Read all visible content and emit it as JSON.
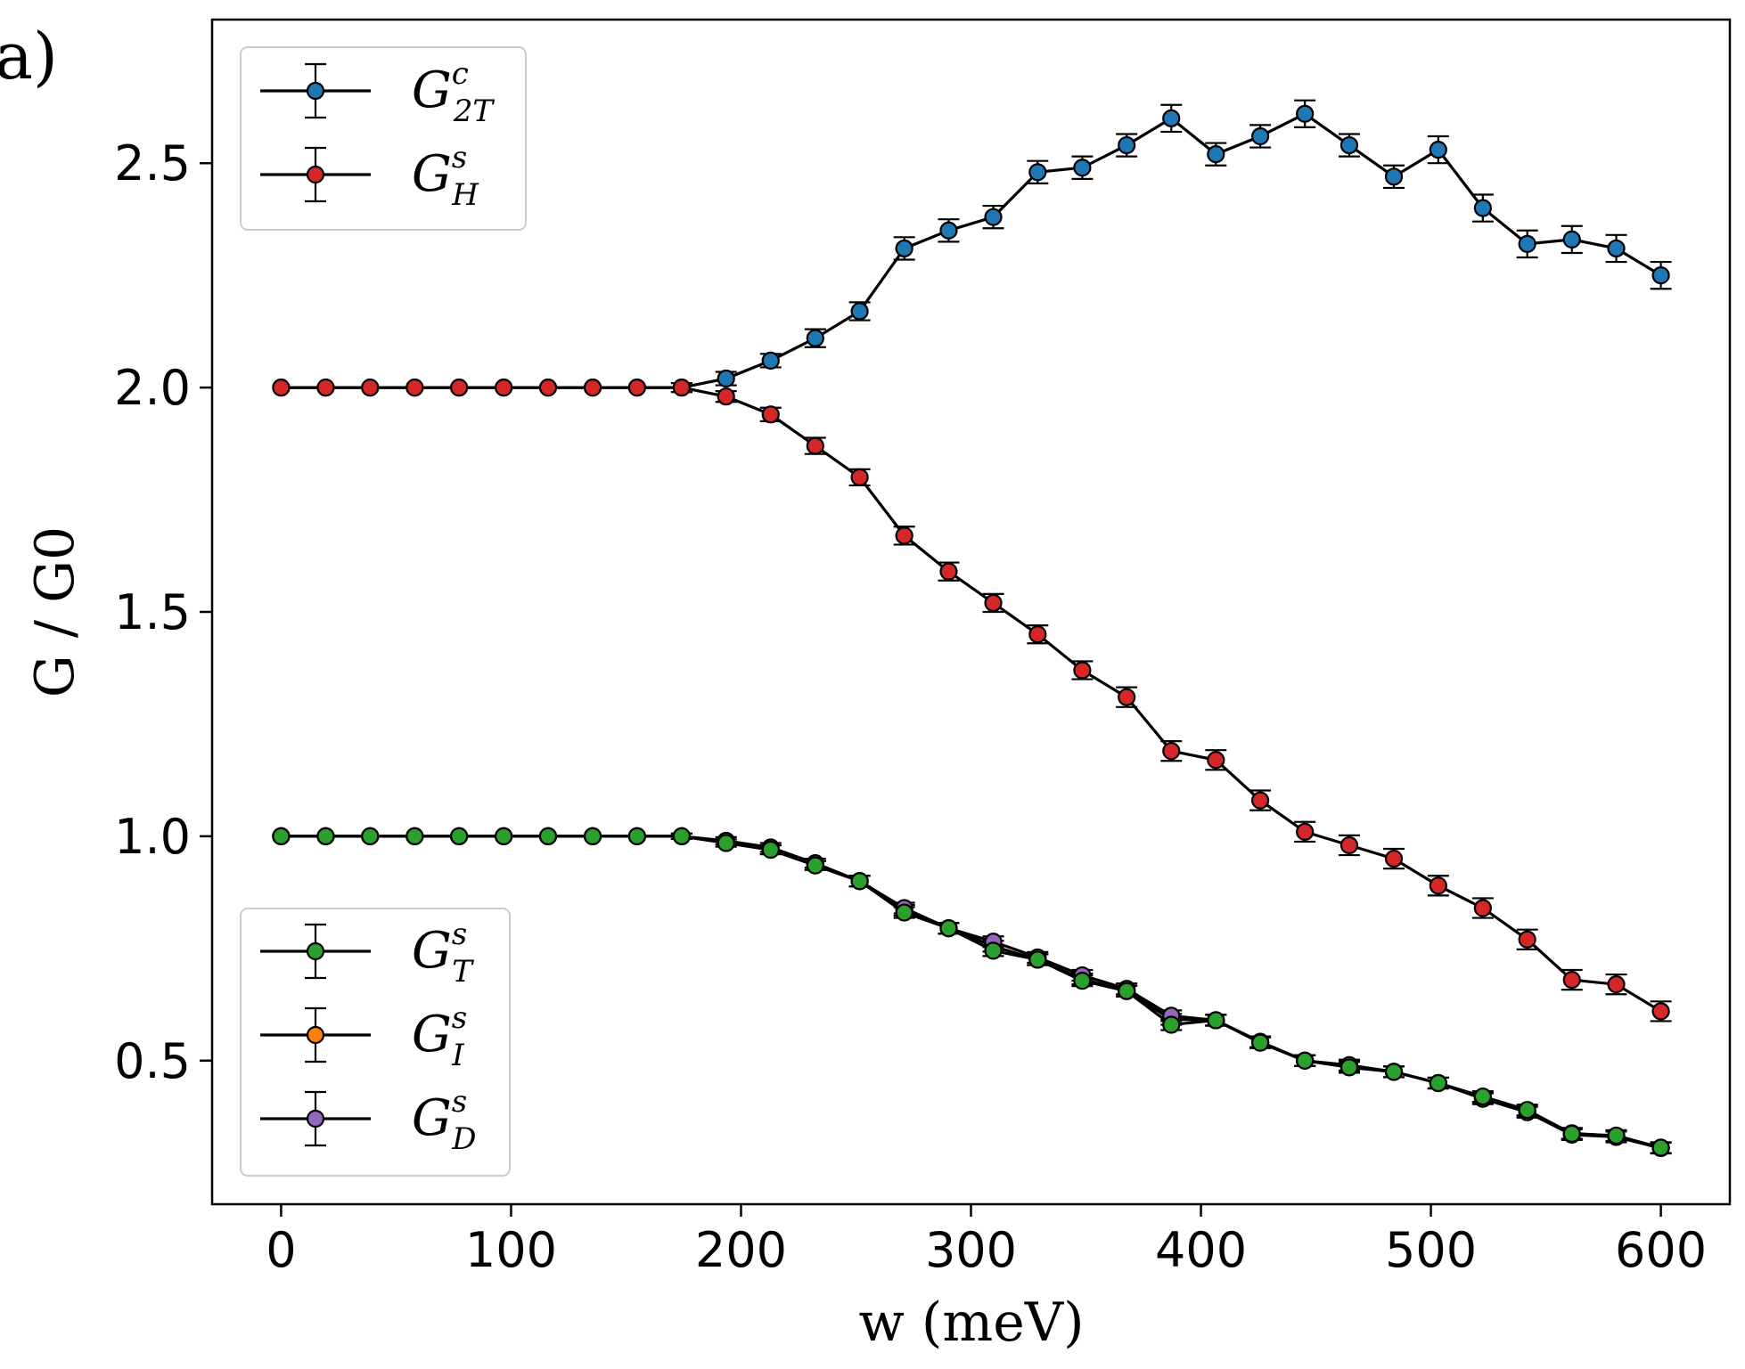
{
  "panel_label": "a)",
  "chart_data": {
    "type": "line",
    "title": "",
    "xlabel": "w (meV)",
    "ylabel": "G / G0",
    "xlim": [
      -30,
      630
    ],
    "ylim": [
      0.18,
      2.82
    ],
    "xticks": [
      0,
      100,
      200,
      300,
      400,
      500,
      600
    ],
    "yticks": [
      0.5,
      1.0,
      1.5,
      2.0,
      2.5
    ],
    "xtick_labels": [
      "0",
      "100",
      "200",
      "300",
      "400",
      "500",
      "600"
    ],
    "ytick_labels": [
      "0.5",
      "1.0",
      "1.5",
      "2.0",
      "2.5"
    ],
    "grid": false,
    "error_bars": true,
    "x": [
      0,
      19.4,
      38.7,
      58.1,
      77.4,
      96.8,
      116.1,
      135.5,
      154.8,
      174.2,
      193.5,
      212.9,
      232.3,
      251.6,
      271.0,
      290.3,
      309.7,
      329.0,
      348.4,
      367.7,
      387.1,
      406.5,
      425.8,
      445.2,
      464.5,
      483.9,
      503.2,
      522.6,
      541.9,
      561.3,
      580.6,
      600.0
    ],
    "series": [
      {
        "name": "G_2T^c",
        "label_main": "G",
        "label_sub": "2T",
        "label_sup": "c",
        "color": "#1f77b4",
        "legend": "upper",
        "values": [
          2.0,
          2.0,
          2.0,
          2.0,
          2.0,
          2.0,
          2.0,
          2.0,
          2.0,
          2.0,
          2.02,
          2.06,
          2.11,
          2.17,
          2.31,
          2.35,
          2.38,
          2.48,
          2.49,
          2.54,
          2.6,
          2.52,
          2.56,
          2.61,
          2.54,
          2.47,
          2.53,
          2.4,
          2.32,
          2.33,
          2.31,
          2.25
        ],
        "errors": [
          0,
          0,
          0,
          0,
          0,
          0,
          0,
          0,
          0,
          0.01,
          0.015,
          0.015,
          0.02,
          0.02,
          0.025,
          0.025,
          0.025,
          0.025,
          0.025,
          0.025,
          0.03,
          0.025,
          0.025,
          0.03,
          0.025,
          0.025,
          0.03,
          0.03,
          0.03,
          0.03,
          0.03,
          0.03
        ]
      },
      {
        "name": "G_H^s",
        "label_main": "G",
        "label_sub": "H",
        "label_sup": "s",
        "color": "#d62728",
        "legend": "upper",
        "values": [
          2.0,
          2.0,
          2.0,
          2.0,
          2.0,
          2.0,
          2.0,
          2.0,
          2.0,
          2.0,
          1.98,
          1.94,
          1.87,
          1.8,
          1.67,
          1.59,
          1.52,
          1.45,
          1.37,
          1.31,
          1.19,
          1.17,
          1.08,
          1.01,
          0.98,
          0.95,
          0.89,
          0.84,
          0.77,
          0.68,
          0.67,
          0.61
        ],
        "errors": [
          0,
          0,
          0,
          0,
          0,
          0,
          0,
          0,
          0,
          0.01,
          0.012,
          0.015,
          0.018,
          0.018,
          0.02,
          0.02,
          0.02,
          0.02,
          0.02,
          0.022,
          0.022,
          0.022,
          0.022,
          0.022,
          0.022,
          0.022,
          0.022,
          0.022,
          0.022,
          0.022,
          0.022,
          0.022
        ]
      },
      {
        "name": "G_I^s",
        "label_main": "G",
        "label_sub": "I",
        "label_sup": "s",
        "color": "#ff7f0e",
        "legend": "lower",
        "values": [
          1.0,
          1.0,
          1.0,
          1.0,
          1.0,
          1.0,
          1.0,
          1.0,
          1.0,
          1.0,
          0.985,
          0.97,
          0.935,
          0.9,
          0.835,
          0.795,
          0.755,
          0.725,
          0.682,
          0.655,
          0.592,
          0.59,
          0.542,
          0.5,
          0.488,
          0.475,
          0.45,
          0.418,
          0.388,
          0.338,
          0.332,
          0.306
        ],
        "errors": [
          0,
          0,
          0,
          0,
          0,
          0,
          0,
          0,
          0,
          0.006,
          0.008,
          0.01,
          0.01,
          0.012,
          0.012,
          0.012,
          0.012,
          0.012,
          0.012,
          0.012,
          0.012,
          0.012,
          0.012,
          0.012,
          0.012,
          0.012,
          0.012,
          0.012,
          0.012,
          0.012,
          0.012,
          0.012
        ]
      },
      {
        "name": "G_D^s",
        "label_main": "G",
        "label_sub": "D",
        "label_sup": "s",
        "color": "#9467bd",
        "legend": "lower",
        "values": [
          1.0,
          1.0,
          1.0,
          1.0,
          1.0,
          1.0,
          1.0,
          1.0,
          1.0,
          1.0,
          0.99,
          0.975,
          0.94,
          0.9,
          0.84,
          0.795,
          0.765,
          0.73,
          0.69,
          0.66,
          0.6,
          0.59,
          0.54,
          0.5,
          0.49,
          0.475,
          0.45,
          0.415,
          0.385,
          0.335,
          0.33,
          0.305
        ],
        "errors": [
          0,
          0,
          0,
          0,
          0,
          0,
          0,
          0,
          0,
          0.006,
          0.008,
          0.01,
          0.01,
          0.012,
          0.012,
          0.012,
          0.012,
          0.012,
          0.012,
          0.012,
          0.012,
          0.012,
          0.012,
          0.012,
          0.012,
          0.012,
          0.012,
          0.012,
          0.012,
          0.012,
          0.012,
          0.012
        ]
      },
      {
        "name": "G_T^s",
        "label_main": "G",
        "label_sub": "T",
        "label_sup": "s",
        "color": "#2ca02c",
        "legend": "lower",
        "values": [
          1.0,
          1.0,
          1.0,
          1.0,
          1.0,
          1.0,
          1.0,
          1.0,
          1.0,
          1.0,
          0.985,
          0.97,
          0.935,
          0.9,
          0.83,
          0.795,
          0.745,
          0.725,
          0.678,
          0.655,
          0.58,
          0.59,
          0.54,
          0.5,
          0.485,
          0.475,
          0.45,
          0.42,
          0.39,
          0.337,
          0.333,
          0.306
        ],
        "errors": [
          0,
          0,
          0,
          0,
          0,
          0,
          0,
          0,
          0,
          0.006,
          0.008,
          0.01,
          0.01,
          0.012,
          0.012,
          0.012,
          0.012,
          0.012,
          0.012,
          0.012,
          0.012,
          0.012,
          0.012,
          0.012,
          0.012,
          0.012,
          0.012,
          0.012,
          0.012,
          0.012,
          0.012,
          0.012
        ]
      }
    ],
    "legends": [
      {
        "position": "top-left",
        "entries": [
          "G_2T^c",
          "G_H^s"
        ]
      },
      {
        "position": "bottom-left",
        "entries": [
          "G_T^s",
          "G_I^s",
          "G_D^s"
        ]
      }
    ]
  }
}
